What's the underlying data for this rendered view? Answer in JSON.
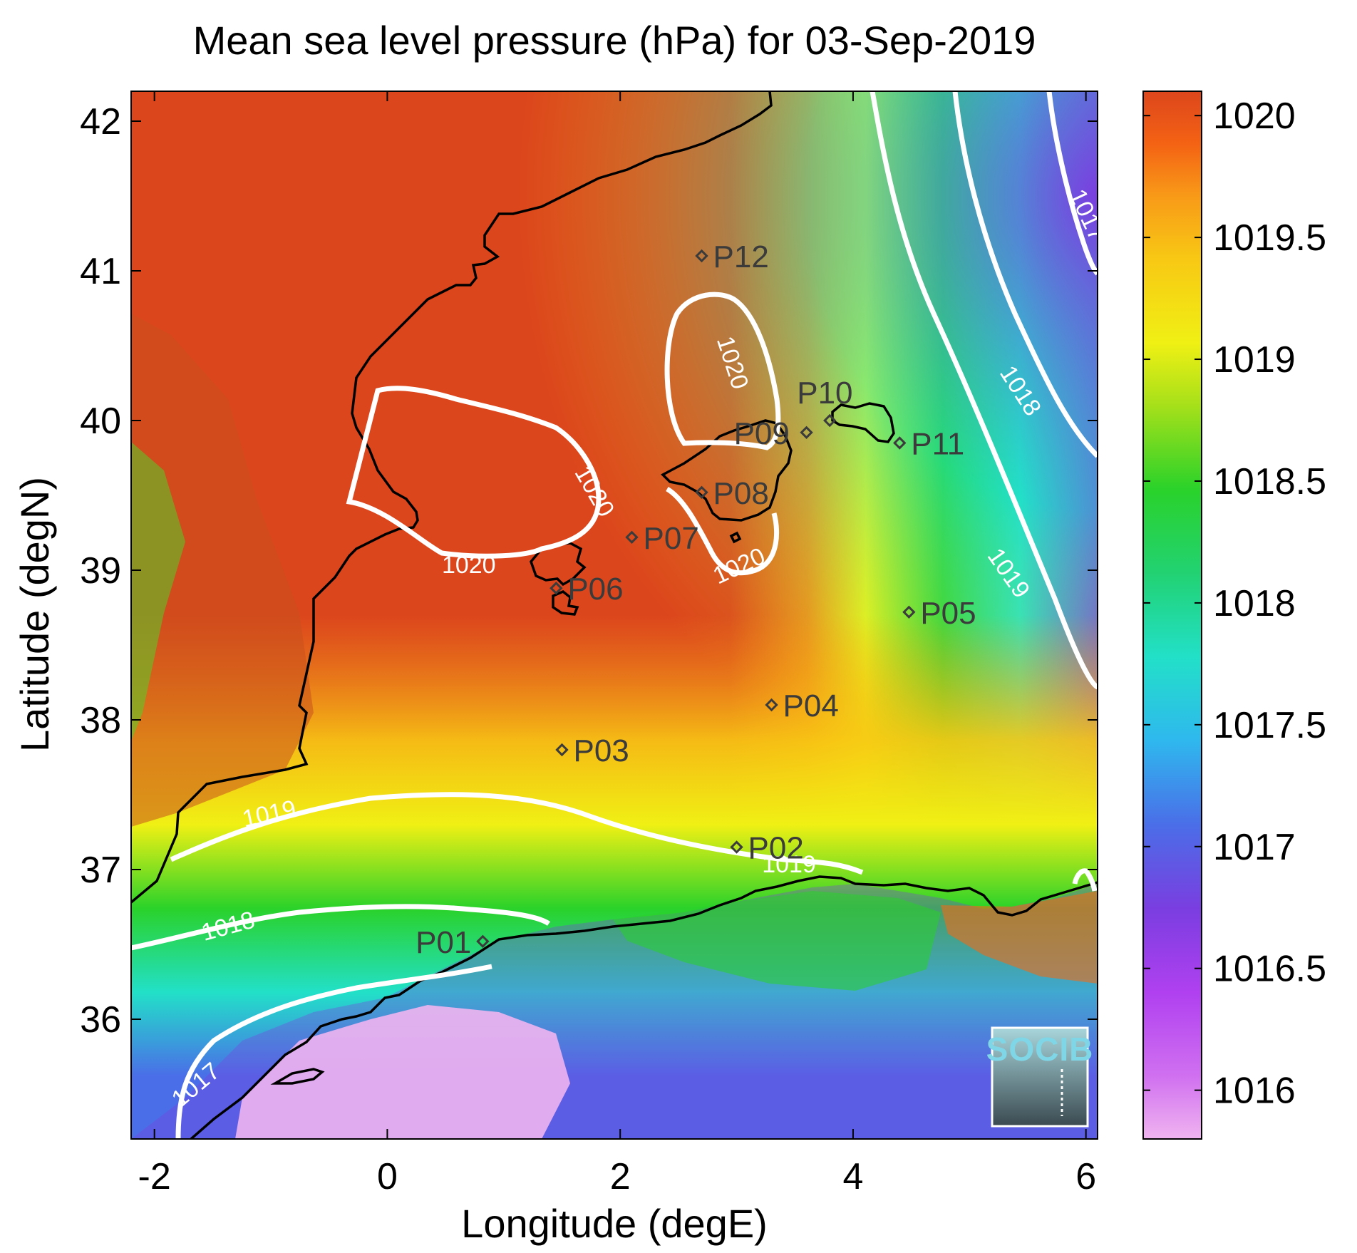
{
  "chart_data": {
    "type": "heatmap",
    "title": "Mean sea level pressure (hPa) for 03-Sep-2019",
    "xlabel": "Longitude (degE)",
    "ylabel": "Latitude (degN)",
    "xlim": [
      -2.2,
      6.1
    ],
    "ylim": [
      35.2,
      42.2
    ],
    "x_ticks": [
      -2,
      0,
      2,
      4,
      6
    ],
    "x_tick_labels": [
      "-2",
      "0",
      "2",
      "4",
      "6"
    ],
    "y_ticks": [
      36,
      37,
      38,
      39,
      40,
      41,
      42
    ],
    "y_tick_labels": [
      "36",
      "37",
      "38",
      "39",
      "40",
      "41",
      "42"
    ],
    "colorbar": {
      "min": 1015.8,
      "max": 1020.1,
      "ticks": [
        1016,
        1016.5,
        1017,
        1017.5,
        1018,
        1018.5,
        1019,
        1019.5,
        1020
      ],
      "tick_labels": [
        "1016",
        "1016.5",
        "1017",
        "1017.5",
        "1018",
        "1018.5",
        "1019",
        "1019.5",
        "1020"
      ],
      "colormap": [
        "#f0b4f0",
        "#c040f0",
        "#7a3ee0",
        "#4a6ee8",
        "#2fb8ee",
        "#22e0c8",
        "#22d272",
        "#2ad22a",
        "#a6e01a",
        "#f0f014",
        "#f8c814",
        "#f89a18",
        "#f46214",
        "#dc461c"
      ]
    },
    "stations": [
      {
        "name": "P01",
        "lon": 0.82,
        "lat": 36.52
      },
      {
        "name": "P02",
        "lon": 3.0,
        "lat": 37.15
      },
      {
        "name": "P03",
        "lon": 1.5,
        "lat": 37.8
      },
      {
        "name": "P04",
        "lon": 3.3,
        "lat": 38.1
      },
      {
        "name": "P05",
        "lon": 4.48,
        "lat": 38.72
      },
      {
        "name": "P06",
        "lon": 1.45,
        "lat": 38.88
      },
      {
        "name": "P07",
        "lon": 2.1,
        "lat": 39.22
      },
      {
        "name": "P08",
        "lon": 2.7,
        "lat": 39.52
      },
      {
        "name": "P09",
        "lon": 3.6,
        "lat": 39.92
      },
      {
        "name": "P10",
        "lon": 3.8,
        "lat": 40.0
      },
      {
        "name": "P11",
        "lon": 4.4,
        "lat": 39.85
      },
      {
        "name": "P12",
        "lon": 2.7,
        "lat": 41.1
      }
    ],
    "contour_labels": [
      {
        "text": "1020",
        "lon": 2.9,
        "lat": 40.37,
        "angle": 72
      },
      {
        "text": "1020",
        "lon": 1.72,
        "lat": 39.5,
        "angle": 60
      },
      {
        "text": "1020",
        "lon": 0.7,
        "lat": 38.98,
        "angle": 0
      },
      {
        "text": "1020",
        "lon": 3.05,
        "lat": 38.98,
        "angle": -25
      },
      {
        "text": "1019",
        "lon": -1.0,
        "lat": 37.32,
        "angle": -12
      },
      {
        "text": "1019",
        "lon": 3.45,
        "lat": 36.98,
        "angle": 0
      },
      {
        "text": "1019",
        "lon": 5.28,
        "lat": 38.95,
        "angle": 55
      },
      {
        "text": "1018",
        "lon": -1.35,
        "lat": 36.57,
        "angle": -15
      },
      {
        "text": "1018",
        "lon": 5.38,
        "lat": 40.17,
        "angle": 57
      },
      {
        "text": "1017",
        "lon": -1.6,
        "lat": 35.52,
        "angle": -40
      },
      {
        "text": "1017",
        "lon": 5.95,
        "lat": 41.35,
        "angle": 65
      }
    ],
    "grid": false
  },
  "logo": {
    "text": "SOCIB"
  }
}
